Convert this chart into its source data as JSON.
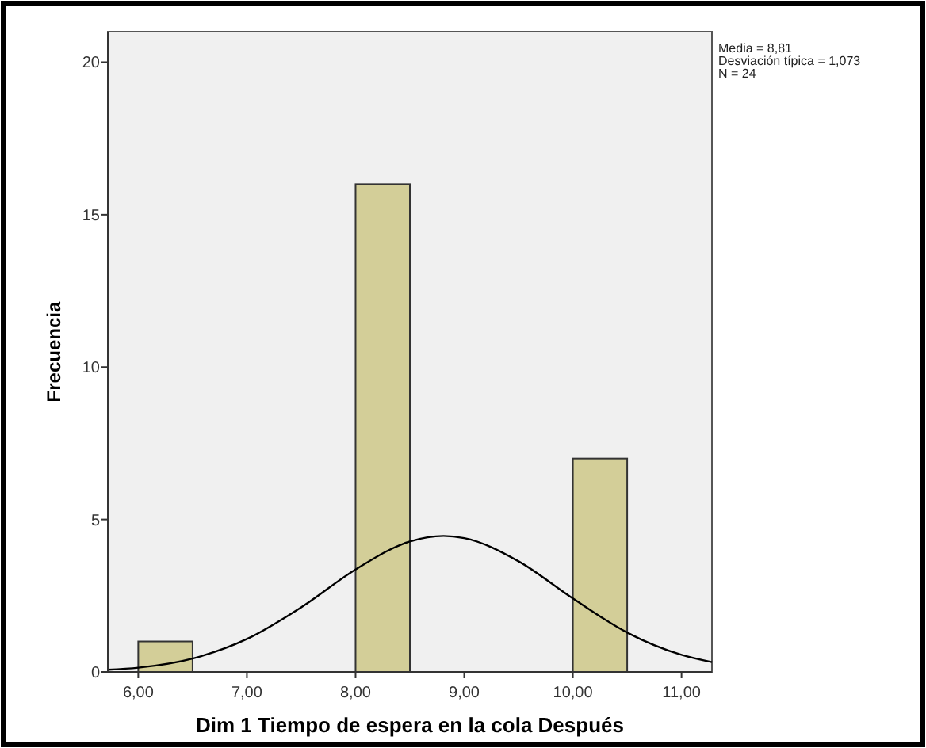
{
  "chart_data": {
    "type": "histogram",
    "xlabel": "Dim 1 Tiempo de espera en la cola Después",
    "ylabel": "Frecuencia",
    "bins": [
      6,
      6.5,
      7,
      7.5,
      8,
      8.5,
      9,
      9.5,
      10,
      10.5
    ],
    "values": [
      1,
      0,
      0,
      0,
      16,
      0,
      0,
      0,
      7
    ],
    "color": "#d3ce98",
    "series": [
      {
        "type": "line",
        "color": "#000000",
        "x": [
          5.72,
          6,
          6.5,
          7,
          7.5,
          8,
          8.5,
          8.81,
          9,
          9.5,
          10,
          10.5,
          11,
          11.28
        ],
        "values": [
          0.07,
          0.14,
          0.44,
          1.08,
          2.12,
          3.36,
          4.28,
          4.46,
          4.39,
          3.63,
          2.41,
          1.29,
          0.56,
          0.32
        ]
      }
    ],
    "xlim": [
      5.72,
      11.28
    ],
    "ylim": [
      0,
      21
    ],
    "xticks": [
      {
        "value": 6,
        "label": "6,00"
      },
      {
        "value": 7,
        "label": "7,00"
      },
      {
        "value": 8,
        "label": "8,00"
      },
      {
        "value": 9,
        "label": "9,00"
      },
      {
        "value": 10,
        "label": "10,00"
      },
      {
        "value": 11,
        "label": "11,00"
      }
    ],
    "yticks": [
      0,
      5,
      10,
      15,
      20
    ],
    "grid": false,
    "annotations": [
      "Media = 8,81",
      "Desviación típica = 1,073",
      "N = 24"
    ]
  }
}
